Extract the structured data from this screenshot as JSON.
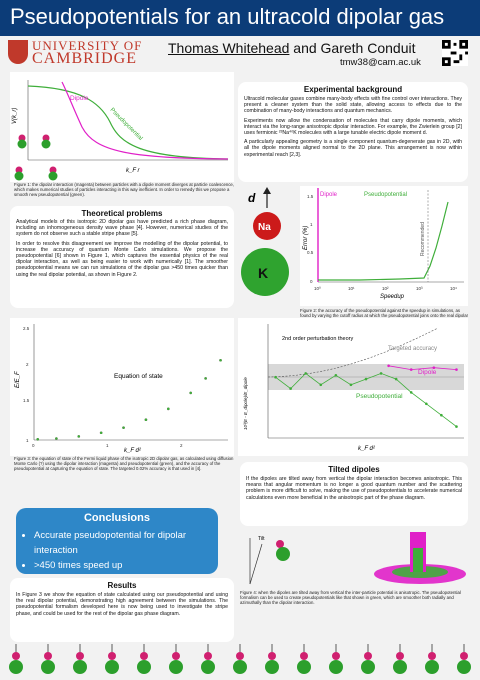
{
  "header": {
    "title": "Pseudopotentials for an ultracold dipolar gas"
  },
  "logo": {
    "line1": "UNIVERSITY OF",
    "line2": "CAMBRIDGE"
  },
  "authors": {
    "a1": "Thomas Whitehead",
    "and": " and ",
    "a2": "Gareth Conduit",
    "email": "tmw38@cam.ac.uk"
  },
  "fig1": {
    "ylabel": "V(k_r)",
    "xlabel": "k_F r",
    "dipole": "Dipole",
    "pseudo": "Pseudopotential",
    "caption": "Figure 1: the dipolar interaction (magenta) between particles with a dipole moment diverges at particle coalescence, which makes numerical studies of particles interacting in this way inefficient. In order to remedy this we propose a smooth new pseudopotential (green)."
  },
  "experimental": {
    "heading": "Experimental background",
    "p1": "Ultracold molecular gases combine many-body effects with fine control over interactions. They present a cleaner system than the solid state, allowing access to effects due to the combination of many-body interactions and quantum mechanics.",
    "p2": "Experiments now allow the condensation of molecules that carry dipole moments, which interact via the long-range anisotropic dipolar interaction. For example, the Zwierlein group [2] uses fermionic ²³Na⁴⁰K molecules with a large tunable electric dipole moment d.",
    "p3": "A particularly appealing geometry is a single component quantum-degenerate gas in 2D, with all the dipole moments aligned normal to the 2D plane. This arrangement is now within experimental reach [2,3]."
  },
  "molecule": {
    "d": "d",
    "na": "Na",
    "k": "K"
  },
  "theoretical": {
    "heading": "Theoretical problems",
    "p1": "Analytical models of this isotropic 2D dipolar gas have predicted a rich phase diagram, including an inhomogeneous density wave phase [4]. However, numerical studies of the system do not observe such a stable stripe phase [5].",
    "p2": "In order to resolve this disagreement we improve the modelling of the dipolar potential, to increase the accuracy of quantum Monte Carlo simulations. We propose the pseudopotential [6] shown in Figure 1, which captures the essential physics of the real dipolar interaction, as well as being easier to work with numerically [1]. The smoother pseudopotential means we can run simulations of the dipolar gas >450 times quicker than using the real dipolar potential, as shown in Figure 2."
  },
  "fig2": {
    "ylabel": "Error (%)",
    "xlabel": "Speedup",
    "dipole": "Dipole",
    "pseudo": "Pseudopotential",
    "recommended": "Recommended",
    "xticks": [
      "10⁰",
      "10¹",
      "10²",
      "10³",
      "10⁴"
    ],
    "yticks": [
      "0",
      "0.5",
      "1",
      "1.5"
    ],
    "caption": "Figure 2: the accuracy of the pseudopotential against the speedup in simulations, as found by varying the cutoff radius at which the pseudopotential joins onto the real dipolar potential. The recommended cutoff gives accuracy of order 0.02% and a speedup of ~450 times when compared to a simulation using the dipolar interaction. This was benchmarked for the Slater-Jastrow trial wavefunction using diffusion Monte Carlo."
  },
  "fig3": {
    "ylabel": "E/E_F",
    "xlabel": "k_F d²",
    "label": "Equation of state",
    "yticks": [
      "1",
      "1.5",
      "2",
      "2.5"
    ],
    "xticks": [
      "0",
      "1",
      "2"
    ],
    "caption": "Figure 3: the equation of state of the Fermi liquid phase of the isotropic 2D dipolar gas, as calculated using diffusion Monte Carlo (?) using the dipolar interaction (magenta) and pseudopotential (green), and the accuracy of the pseudopotential at capturing the equation of state. The targeted 0.02% accuracy is that used in [4]."
  },
  "fig4": {
    "ylabel": "10³(E - E_dipole)/E_dipole",
    "xlabel": "k_F d²",
    "theory": "2nd order perturbation theory",
    "target": "Targeted accuracy",
    "dipole": "Dipole",
    "pseudo": "Pseudopotential"
  },
  "conclusions": {
    "heading": "Conclusions",
    "items": [
      "Accurate pseudopotential for dipolar interaction",
      ">450 times speed up"
    ]
  },
  "results": {
    "heading": "Results",
    "p1": "In Figure 3 we show the equation of state calculated using our pseudopotential and using the real dipolar potential, demonstrating high agreement between the simulations. The pseudopotential formalism developed here is now being used to investigate the stripe phase, and could be used for the rest of the dipolar gas phase diagram."
  },
  "tilted": {
    "heading": "Tilted dipoles",
    "p1": "If the dipoles are tilted away from vertical the dipolar interaction becomes anisotropic. This means that angular momentum is no longer a good quantum number and the scattering problem is more difficult to solve, making the use of pseudopotentials to accelerate numerical calculations even more beneficial in the anisotropic part of the phase diagram.",
    "tilt": "Tilt",
    "caption": "Figure 4: when the dipoles are tilted away from vertical the inter-particle potential is anisotropic. The pseudopotential formalism can be used to create pseudopotentials like that shown in green, which are smoother both radially and azimuthally than the dipolar interaction."
  },
  "references": [
    "[1] T.M. Whitehead and G.J. Conduit, Phys. Rev. A 93, 022706 (2016)",
    "[2] J.W. Park, S.A. Will, and M.W. Zwierlein, Phys. Rev. Lett. 114, 205302 (2015)",
    "[3] K.-K. Ni, S. Ospelkaus, D. Wang, G. Quéméner, B. Neyenhuis, M.H.G. de Miranda, J.L. Bohn, J. Ye and D.S. Jin, Nature 464, 1324 (2010)",
    "[4] M.M. Parish and F.M. Marchetti, Phys. Rev. Lett. 108, 145304 (2012)",
    "[5] N. Matveeva and S. Giorgini, Phys. Rev. Lett. 109, 200401 (2012)",
    "[6] P.O. Bugnion, P. López Ríos, R.J. Needs, and G.J. Conduit, Phys. Rev. A 90, 033626 (2014)",
    "[7] R.J. Needs, M.D. Towler, N.D. Drummond, and P. López Ríos, J. Phys.: Condens. Matter 22, 023201 (2010)"
  ],
  "colors": {
    "navy": "#0c3c78",
    "magenta": "#e020c8",
    "green": "#3fae3a",
    "blue": "#2e87c8",
    "red": "#c0392b"
  },
  "chart_data": [
    {
      "type": "line",
      "id": "fig3",
      "xlabel": "k_F d²",
      "ylabel": "E/E_F",
      "xlim": [
        0,
        2.6
      ],
      "ylim": [
        1,
        2.6
      ],
      "series": [
        {
          "values": [
            [
              0.05,
              1.01
            ],
            [
              0.3,
              1.02
            ],
            [
              0.6,
              1.05
            ],
            [
              0.9,
              1.1
            ],
            [
              1.2,
              1.17
            ],
            [
              1.5,
              1.28
            ],
            [
              1.8,
              1.43
            ],
            [
              2.1,
              1.65
            ],
            [
              2.3,
              1.85
            ],
            [
              2.5,
              2.1
            ]
          ]
        },
        {
          "values": [
            [
              0.05,
              1.01
            ],
            [
              0.3,
              1.02
            ],
            [
              0.6,
              1.05
            ],
            [
              0.9,
              1.1
            ],
            [
              1.2,
              1.17
            ],
            [
              1.5,
              1.28
            ],
            [
              1.8,
              1.43
            ],
            [
              2.1,
              1.65
            ],
            [
              2.3,
              1.85
            ],
            [
              2.5,
              2.1
            ]
          ]
        }
      ]
    },
    {
      "type": "line",
      "id": "fig4",
      "xlabel": "k_F d²",
      "xlim": [
        0,
        2.6
      ],
      "ylim": [
        -1.5,
        1.5
      ],
      "series": [
        {
          "name": "Pseudopotential",
          "values": [
            [
              0.1,
              0.1
            ],
            [
              0.3,
              -0.2
            ],
            [
              0.5,
              0.2
            ],
            [
              0.7,
              -0.1
            ],
            [
              0.9,
              0.15
            ],
            [
              1.1,
              -0.1
            ],
            [
              1.3,
              0.05
            ],
            [
              1.5,
              0.2
            ],
            [
              1.7,
              0.05
            ],
            [
              1.9,
              -0.3
            ],
            [
              2.1,
              -0.6
            ],
            [
              2.3,
              -0.9
            ],
            [
              2.5,
              -1.2
            ]
          ]
        },
        {
          "name": "Dipole",
          "values": [
            [
              1.6,
              0.4
            ],
            [
              1.9,
              0.3
            ],
            [
              2.2,
              0.35
            ],
            [
              2.5,
              0.3
            ]
          ]
        }
      ]
    }
  ]
}
